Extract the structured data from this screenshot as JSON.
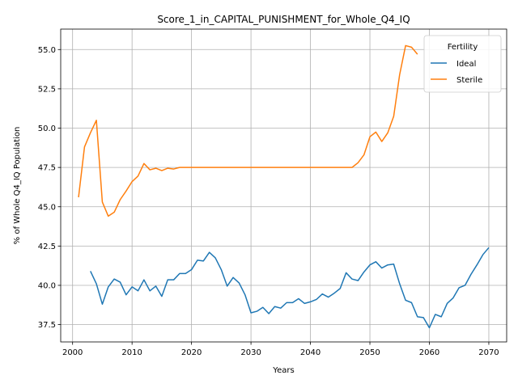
{
  "chart_data": {
    "type": "line",
    "title": "Score_1_in_CAPITAL_PUNISHMENT_for_Whole_Q4_IQ",
    "xlabel": "Years",
    "ylabel": "% of Whole Q4_IQ Population",
    "xlim": [
      1998,
      2073
    ],
    "ylim": [
      36.4,
      56.3
    ],
    "xticks": [
      2000,
      2010,
      2020,
      2030,
      2040,
      2050,
      2060,
      2070
    ],
    "yticks": [
      37.5,
      40.0,
      42.5,
      45.0,
      47.5,
      50.0,
      52.5,
      55.0
    ],
    "ytick_labels": [
      "37.5",
      "40.0",
      "42.5",
      "45.0",
      "47.5",
      "50.0",
      "52.5",
      "55.0"
    ],
    "grid": true,
    "legend": {
      "title": "Fertility",
      "position": "top-right"
    },
    "series": [
      {
        "name": "Ideal",
        "color": "#1f77b4",
        "x": [
          2003,
          2004,
          2005,
          2006,
          2007,
          2008,
          2009,
          2010,
          2011,
          2012,
          2013,
          2014,
          2015,
          2016,
          2017,
          2018,
          2019,
          2020,
          2021,
          2022,
          2023,
          2024,
          2025,
          2026,
          2027,
          2028,
          2029,
          2030,
          2031,
          2032,
          2033,
          2034,
          2035,
          2036,
          2037,
          2038,
          2039,
          2040,
          2041,
          2042,
          2043,
          2044,
          2045,
          2046,
          2047,
          2048,
          2049,
          2050,
          2051,
          2052,
          2053,
          2054,
          2055,
          2056,
          2057,
          2058,
          2059,
          2060,
          2061,
          2062,
          2063,
          2064,
          2065,
          2066,
          2067,
          2068,
          2069,
          2070
        ],
        "values": [
          40.9,
          40.1,
          38.8,
          39.9,
          40.4,
          40.2,
          39.4,
          39.9,
          39.65,
          40.35,
          39.65,
          39.95,
          39.3,
          40.35,
          40.35,
          40.75,
          40.75,
          41.0,
          41.6,
          41.55,
          42.1,
          41.75,
          41.0,
          39.95,
          40.5,
          40.15,
          39.4,
          38.25,
          38.35,
          38.6,
          38.2,
          38.65,
          38.55,
          38.9,
          38.9,
          39.15,
          38.85,
          38.95,
          39.1,
          39.45,
          39.25,
          39.5,
          39.8,
          40.8,
          40.4,
          40.3,
          40.85,
          41.3,
          41.5,
          41.1,
          41.3,
          41.35,
          40.1,
          39.05,
          38.9,
          38.0,
          37.95,
          37.3,
          38.15,
          38.0,
          38.85,
          39.2,
          39.85,
          40.0,
          40.7,
          41.3,
          41.95,
          42.4
        ]
      },
      {
        "name": "Sterile",
        "color": "#ff7f0e",
        "x": [
          2001,
          2002,
          2003,
          2004,
          2005,
          2006,
          2007,
          2008,
          2009,
          2010,
          2011,
          2012,
          2013,
          2014,
          2015,
          2016,
          2017,
          2018,
          2019,
          2020,
          2021,
          2022,
          2023,
          2024,
          2025,
          2026,
          2027,
          2028,
          2029,
          2030,
          2031,
          2032,
          2033,
          2034,
          2035,
          2036,
          2037,
          2038,
          2039,
          2040,
          2041,
          2042,
          2043,
          2044,
          2045,
          2046,
          2047,
          2048,
          2049,
          2050,
          2051,
          2052,
          2053,
          2054,
          2055,
          2056,
          2057,
          2058
        ],
        "values": [
          45.6,
          48.8,
          49.7,
          50.5,
          45.3,
          44.4,
          44.65,
          45.45,
          46.0,
          46.6,
          46.95,
          47.75,
          47.35,
          47.45,
          47.3,
          47.45,
          47.4,
          47.5,
          47.5,
          47.5,
          47.5,
          47.5,
          47.5,
          47.5,
          47.5,
          47.5,
          47.5,
          47.5,
          47.5,
          47.5,
          47.5,
          47.5,
          47.5,
          47.5,
          47.5,
          47.5,
          47.5,
          47.5,
          47.5,
          47.5,
          47.5,
          47.5,
          47.5,
          47.5,
          47.5,
          47.5,
          47.5,
          47.8,
          48.3,
          49.45,
          49.75,
          49.15,
          49.7,
          50.75,
          53.4,
          55.25,
          55.15,
          54.7
        ]
      }
    ]
  }
}
